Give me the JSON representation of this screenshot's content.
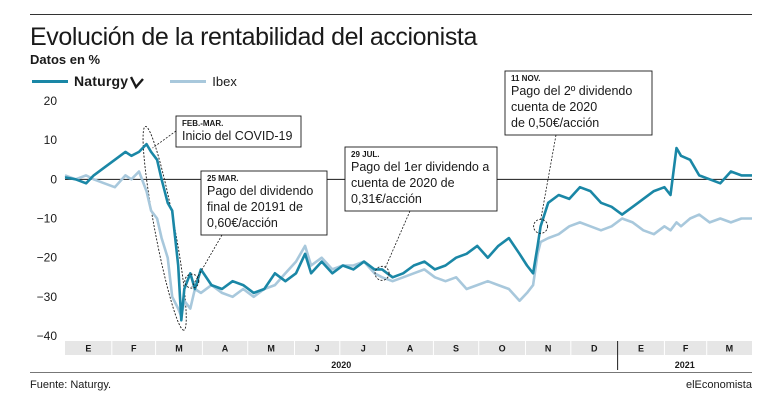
{
  "header": {
    "title": "Evolución de la rentabilidad del accionista",
    "subtitle": "Datos en %"
  },
  "footer": {
    "source": "Fuente: Naturgy.",
    "publisher": "elEconomista"
  },
  "colors": {
    "naturgy": "#1a87a6",
    "ibex": "#a8c8dc",
    "axis": "#1a1a1a",
    "band": "#e6e6e6"
  },
  "chart_data": {
    "type": "line",
    "title": "Evolución de la rentabilidad del accionista",
    "ylabel": "Datos en %",
    "ylim": [
      -40,
      20
    ],
    "yticks": [
      20,
      10,
      0,
      -10,
      -20,
      -30,
      -40
    ],
    "grid": false,
    "legend_position": "top-left",
    "month_labels": [
      "E",
      "F",
      "M",
      "A",
      "M",
      "J",
      "J",
      "A",
      "S",
      "O",
      "N",
      "D",
      "E",
      "F",
      "M"
    ],
    "year_labels": [
      "2020",
      "2021"
    ],
    "x_start": "2020-01-01",
    "x_end": "2021-03-31",
    "series": [
      {
        "name": "Naturgy",
        "color": "#1a87a6",
        "points": [
          [
            "2020-01-01",
            0.5
          ],
          [
            "2020-01-08",
            0
          ],
          [
            "2020-01-15",
            -1
          ],
          [
            "2020-01-20",
            1
          ],
          [
            "2020-01-27",
            3
          ],
          [
            "2020-02-03",
            5
          ],
          [
            "2020-02-10",
            7
          ],
          [
            "2020-02-14",
            6
          ],
          [
            "2020-02-19",
            7
          ],
          [
            "2020-02-24",
            9
          ],
          [
            "2020-02-27",
            7
          ],
          [
            "2020-03-02",
            5
          ],
          [
            "2020-03-05",
            0
          ],
          [
            "2020-03-09",
            -6
          ],
          [
            "2020-03-12",
            -8
          ],
          [
            "2020-03-16",
            -22
          ],
          [
            "2020-03-18",
            -36
          ],
          [
            "2020-03-20",
            -28
          ],
          [
            "2020-03-24",
            -24
          ],
          [
            "2020-03-27",
            -28
          ],
          [
            "2020-03-31",
            -23
          ],
          [
            "2020-04-07",
            -27
          ],
          [
            "2020-04-14",
            -28
          ],
          [
            "2020-04-21",
            -26
          ],
          [
            "2020-04-28",
            -27
          ],
          [
            "2020-05-05",
            -29
          ],
          [
            "2020-05-12",
            -28
          ],
          [
            "2020-05-19",
            -24
          ],
          [
            "2020-05-26",
            -26
          ],
          [
            "2020-06-02",
            -24
          ],
          [
            "2020-06-08",
            -19
          ],
          [
            "2020-06-12",
            -24
          ],
          [
            "2020-06-19",
            -21
          ],
          [
            "2020-06-26",
            -24
          ],
          [
            "2020-07-03",
            -22
          ],
          [
            "2020-07-10",
            -23
          ],
          [
            "2020-07-17",
            -21
          ],
          [
            "2020-07-24",
            -23
          ],
          [
            "2020-07-29",
            -23
          ],
          [
            "2020-08-05",
            -25
          ],
          [
            "2020-08-12",
            -24
          ],
          [
            "2020-08-19",
            -22
          ],
          [
            "2020-08-26",
            -21
          ],
          [
            "2020-09-02",
            -23
          ],
          [
            "2020-09-09",
            -22
          ],
          [
            "2020-09-16",
            -20
          ],
          [
            "2020-09-23",
            -19
          ],
          [
            "2020-09-30",
            -17
          ],
          [
            "2020-10-07",
            -20
          ],
          [
            "2020-10-14",
            -17
          ],
          [
            "2020-10-21",
            -15
          ],
          [
            "2020-10-28",
            -19
          ],
          [
            "2020-11-02",
            -22
          ],
          [
            "2020-11-06",
            -24
          ],
          [
            "2020-11-09",
            -17
          ],
          [
            "2020-11-11",
            -12
          ],
          [
            "2020-11-16",
            -6
          ],
          [
            "2020-11-23",
            -4
          ],
          [
            "2020-11-30",
            -5
          ],
          [
            "2020-12-07",
            -2
          ],
          [
            "2020-12-14",
            -3
          ],
          [
            "2020-12-21",
            -6
          ],
          [
            "2020-12-28",
            -7
          ],
          [
            "2021-01-04",
            -9
          ],
          [
            "2021-01-11",
            -7
          ],
          [
            "2021-01-18",
            -5
          ],
          [
            "2021-01-25",
            -3
          ],
          [
            "2021-02-01",
            -2
          ],
          [
            "2021-02-05",
            -4
          ],
          [
            "2021-02-09",
            8
          ],
          [
            "2021-02-12",
            6
          ],
          [
            "2021-02-18",
            5
          ],
          [
            "2021-02-24",
            1
          ],
          [
            "2021-03-03",
            0
          ],
          [
            "2021-03-10",
            -1
          ],
          [
            "2021-03-17",
            2
          ],
          [
            "2021-03-24",
            1
          ],
          [
            "2021-03-31",
            1
          ]
        ]
      },
      {
        "name": "Ibex",
        "color": "#a8c8dc",
        "points": [
          [
            "2020-01-01",
            1
          ],
          [
            "2020-01-08",
            0
          ],
          [
            "2020-01-15",
            1
          ],
          [
            "2020-01-20",
            0
          ],
          [
            "2020-01-27",
            -1
          ],
          [
            "2020-02-03",
            -2
          ],
          [
            "2020-02-10",
            1
          ],
          [
            "2020-02-14",
            0
          ],
          [
            "2020-02-19",
            2
          ],
          [
            "2020-02-24",
            -3
          ],
          [
            "2020-02-27",
            -8
          ],
          [
            "2020-03-02",
            -10
          ],
          [
            "2020-03-05",
            -15
          ],
          [
            "2020-03-09",
            -20
          ],
          [
            "2020-03-12",
            -30
          ],
          [
            "2020-03-16",
            -33
          ],
          [
            "2020-03-18",
            -35
          ],
          [
            "2020-03-20",
            -31
          ],
          [
            "2020-03-24",
            -33
          ],
          [
            "2020-03-27",
            -28
          ],
          [
            "2020-03-31",
            -29
          ],
          [
            "2020-04-07",
            -27
          ],
          [
            "2020-04-14",
            -29
          ],
          [
            "2020-04-21",
            -30
          ],
          [
            "2020-04-28",
            -28
          ],
          [
            "2020-05-05",
            -30
          ],
          [
            "2020-05-12",
            -28
          ],
          [
            "2020-05-19",
            -27
          ],
          [
            "2020-05-26",
            -24
          ],
          [
            "2020-06-02",
            -21
          ],
          [
            "2020-06-08",
            -17
          ],
          [
            "2020-06-12",
            -22
          ],
          [
            "2020-06-19",
            -20
          ],
          [
            "2020-06-26",
            -23
          ],
          [
            "2020-07-03",
            -22
          ],
          [
            "2020-07-10",
            -22
          ],
          [
            "2020-07-17",
            -21
          ],
          [
            "2020-07-24",
            -24
          ],
          [
            "2020-07-29",
            -25
          ],
          [
            "2020-08-05",
            -26
          ],
          [
            "2020-08-12",
            -25
          ],
          [
            "2020-08-19",
            -24
          ],
          [
            "2020-08-26",
            -23
          ],
          [
            "2020-09-02",
            -25
          ],
          [
            "2020-09-09",
            -26
          ],
          [
            "2020-09-16",
            -25
          ],
          [
            "2020-09-23",
            -28
          ],
          [
            "2020-09-30",
            -27
          ],
          [
            "2020-10-07",
            -26
          ],
          [
            "2020-10-14",
            -27
          ],
          [
            "2020-10-21",
            -28
          ],
          [
            "2020-10-28",
            -31
          ],
          [
            "2020-11-02",
            -29
          ],
          [
            "2020-11-06",
            -27
          ],
          [
            "2020-11-09",
            -19
          ],
          [
            "2020-11-11",
            -16
          ],
          [
            "2020-11-16",
            -15
          ],
          [
            "2020-11-23",
            -14
          ],
          [
            "2020-11-30",
            -12
          ],
          [
            "2020-12-07",
            -11
          ],
          [
            "2020-12-14",
            -12
          ],
          [
            "2020-12-21",
            -13
          ],
          [
            "2020-12-28",
            -12
          ],
          [
            "2021-01-04",
            -10
          ],
          [
            "2021-01-11",
            -11
          ],
          [
            "2021-01-18",
            -13
          ],
          [
            "2021-01-25",
            -14
          ],
          [
            "2021-02-01",
            -12
          ],
          [
            "2021-02-05",
            -13
          ],
          [
            "2021-02-09",
            -11
          ],
          [
            "2021-02-12",
            -12
          ],
          [
            "2021-02-18",
            -10
          ],
          [
            "2021-02-24",
            -9
          ],
          [
            "2021-03-03",
            -11
          ],
          [
            "2021-03-10",
            -10
          ],
          [
            "2021-03-17",
            -11
          ],
          [
            "2021-03-24",
            -10
          ],
          [
            "2021-03-31",
            -10
          ]
        ]
      }
    ],
    "annotations": [
      {
        "date_label": "FEB.-MAR.",
        "text": [
          "Inicio del COVID-19"
        ],
        "date": "2020-03-01"
      },
      {
        "date_label": "25 MAR.",
        "text": [
          "Pago del dividendo",
          "final de 20191 de",
          "0,60€/acción"
        ],
        "date": "2020-03-25",
        "value": -26
      },
      {
        "date_label": "29 JUL.",
        "text": [
          "Pago del 1er dividendo a",
          "cuenta de 2020 de",
          "0,31€/acción"
        ],
        "date": "2020-07-29",
        "value": -24
      },
      {
        "date_label": "11 NOV.",
        "text": [
          "Pago del 2º dividendo",
          "cuenta de 2020",
          "de 0,50€/acción"
        ],
        "date": "2020-11-11",
        "value": -12
      }
    ]
  }
}
